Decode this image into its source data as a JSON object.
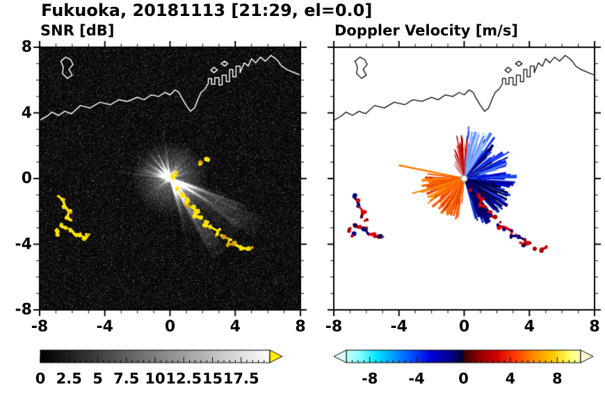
{
  "header": {
    "title": "Fukuoka, 20181113 [21:29, el=0.0]"
  },
  "panels": {
    "snr": {
      "title": "SNR [dB]"
    },
    "doppler": {
      "title": "Doppler Velocity [m/s]"
    }
  },
  "chart_data": {
    "type": "heatmap",
    "description": "Dual-panel Doppler radar PPI display (left: signal-to-noise ratio, right: Doppler velocity)",
    "station": "Fukuoka",
    "date": "20181113",
    "time": "21:29",
    "elevation_deg": 0.0,
    "axes": {
      "xlim": [
        -8,
        8
      ],
      "ylim": [
        -8,
        8
      ],
      "xticks": [
        -8,
        -4,
        0,
        4,
        8
      ],
      "yticks": [
        8,
        4,
        0,
        -4,
        -8
      ],
      "minor_tick_step": 1
    },
    "radar_center": [
      0,
      0
    ],
    "coastline": {
      "color_snr": "#ffffff",
      "color_doppler": "#000000",
      "polylines": [
        [
          [
            -8,
            3.55
          ],
          [
            -7.55,
            3.8
          ],
          [
            -7.25,
            4.05
          ],
          [
            -6.85,
            3.85
          ],
          [
            -6.45,
            4.1
          ],
          [
            -6.05,
            3.95
          ],
          [
            -5.5,
            4.45
          ],
          [
            -4.9,
            4.3
          ],
          [
            -4.3,
            4.65
          ],
          [
            -3.65,
            4.5
          ],
          [
            -3.15,
            4.8
          ],
          [
            -2.6,
            4.7
          ],
          [
            -2.0,
            4.95
          ],
          [
            -1.6,
            4.8
          ],
          [
            -1.15,
            5.1
          ],
          [
            -0.7,
            5.0
          ],
          [
            -0.3,
            5.25
          ],
          [
            0.0,
            5.1
          ],
          [
            0.3,
            5.4
          ],
          [
            0.55,
            5.25
          ],
          [
            0.7,
            4.95
          ],
          [
            1.0,
            4.45
          ],
          [
            1.25,
            4.1
          ],
          [
            1.5,
            4.3
          ],
          [
            1.7,
            4.8
          ],
          [
            1.9,
            5.25
          ],
          [
            2.15,
            5.45
          ],
          [
            2.35,
            5.8
          ],
          [
            2.35,
            6.1
          ],
          [
            2.55,
            6.1
          ],
          [
            2.55,
            5.75
          ],
          [
            2.75,
            5.75
          ],
          [
            2.75,
            6.15
          ],
          [
            3.0,
            6.15
          ],
          [
            3.0,
            5.7
          ],
          [
            3.2,
            5.7
          ],
          [
            3.2,
            6.3
          ],
          [
            3.45,
            6.3
          ],
          [
            3.45,
            5.9
          ],
          [
            3.65,
            5.9
          ],
          [
            3.65,
            6.65
          ],
          [
            3.85,
            6.65
          ],
          [
            3.85,
            6.2
          ],
          [
            4.05,
            6.2
          ],
          [
            4.05,
            6.85
          ],
          [
            4.3,
            6.85
          ],
          [
            4.3,
            6.45
          ],
          [
            4.55,
            7.05
          ],
          [
            4.8,
            6.85
          ],
          [
            5.0,
            7.3
          ],
          [
            5.25,
            7.05
          ],
          [
            5.55,
            7.4
          ],
          [
            5.85,
            7.15
          ],
          [
            6.2,
            7.5
          ],
          [
            6.55,
            7.25
          ],
          [
            6.85,
            6.85
          ],
          [
            7.15,
            6.65
          ],
          [
            7.5,
            6.5
          ],
          [
            8.0,
            6.3
          ]
        ],
        [
          [
            -6.7,
            7.15
          ],
          [
            -6.4,
            7.4
          ],
          [
            -6.1,
            7.25
          ],
          [
            -5.95,
            6.95
          ],
          [
            -6.2,
            6.65
          ],
          [
            -6.0,
            6.3
          ],
          [
            -6.3,
            6.1
          ],
          [
            -6.6,
            6.4
          ],
          [
            -6.55,
            6.8
          ],
          [
            -6.7,
            7.15
          ]
        ],
        [
          [
            2.5,
            6.6
          ],
          [
            2.7,
            6.78
          ],
          [
            2.9,
            6.62
          ],
          [
            2.7,
            6.45
          ],
          [
            2.5,
            6.6
          ]
        ],
        [
          [
            3.15,
            7.0
          ],
          [
            3.35,
            7.15
          ],
          [
            3.55,
            7.0
          ],
          [
            3.35,
            6.85
          ],
          [
            3.15,
            7.0
          ]
        ]
      ]
    },
    "echo_chains": [
      [
        [
          -6.8,
          -1.1
        ],
        [
          -6.55,
          -1.35
        ],
        [
          -6.45,
          -1.7
        ],
        [
          -6.2,
          -2.0
        ],
        [
          -6.3,
          -2.35
        ],
        [
          -6.05,
          -2.55
        ]
      ],
      [
        [
          -6.7,
          -2.9
        ],
        [
          -6.4,
          -3.0
        ],
        [
          -6.1,
          -3.1
        ],
        [
          -5.85,
          -3.4
        ],
        [
          -5.55,
          -3.4
        ],
        [
          -5.25,
          -3.6
        ],
        [
          -5.05,
          -3.5
        ]
      ],
      [
        [
          -7.0,
          -3.15
        ],
        [
          -6.85,
          -3.45
        ]
      ],
      [
        [
          0.45,
          -0.65
        ],
        [
          0.8,
          -1.0
        ],
        [
          1.05,
          -1.3
        ],
        [
          0.95,
          -1.6
        ],
        [
          1.35,
          -1.75
        ],
        [
          1.65,
          -2.0
        ],
        [
          1.55,
          -2.3
        ],
        [
          1.95,
          -2.35
        ],
        [
          2.25,
          -2.6
        ],
        [
          2.15,
          -2.9
        ],
        [
          2.55,
          -3.0
        ],
        [
          2.95,
          -3.2
        ],
        [
          2.85,
          -3.5
        ],
        [
          3.25,
          -3.5
        ],
        [
          3.65,
          -3.7
        ],
        [
          3.55,
          -4.0
        ],
        [
          3.95,
          -4.0
        ],
        [
          4.35,
          -4.2
        ],
        [
          4.75,
          -4.3
        ],
        [
          5.05,
          -4.2
        ]
      ],
      [
        [
          1.8,
          0.9
        ],
        [
          2.25,
          1.1
        ]
      ],
      [
        [
          0.1,
          0.15
        ],
        [
          0.35,
          0.3
        ]
      ]
    ],
    "snr": {
      "title": "SNR [dB]",
      "background": "#000000",
      "chain_color": "#ffe400",
      "chain_alt_color": "#d4a000",
      "colorbar": {
        "range": [
          0,
          20
        ],
        "tick_labels": [
          0,
          2.5,
          5,
          7.5,
          10,
          12.5,
          15,
          17.5
        ],
        "minor_step": 0.5,
        "major_step": 2.5,
        "stops": [
          [
            0,
            "#000000"
          ],
          [
            1,
            "#ffffff"
          ]
        ],
        "over_arrow": "#ffee00"
      },
      "ray_fans": [
        {
          "from": -75,
          "to": -15,
          "n": 85,
          "min_range": 1.2,
          "max_range": 6.3,
          "alpha": [
            0.08,
            0.32
          ]
        },
        {
          "from": 95,
          "to": 175,
          "n": 60,
          "min_range": 1.0,
          "max_range": 4.6,
          "alpha": [
            0.06,
            0.26
          ]
        },
        {
          "from": 15,
          "to": 85,
          "n": 28,
          "min_range": 0.8,
          "max_range": 3.2,
          "alpha": [
            0.05,
            0.18
          ]
        },
        {
          "from": 185,
          "to": 250,
          "n": 18,
          "min_range": 0.8,
          "max_range": 3.0,
          "alpha": [
            0.04,
            0.12
          ]
        },
        {
          "from": 0,
          "to": 360,
          "n": 110,
          "min_range": 0.5,
          "max_range": 2.8,
          "alpha": [
            0.03,
            0.1
          ]
        }
      ],
      "se_glow": {
        "center_deg": -45,
        "spread_deg": 55,
        "n": 24,
        "alpha": 0.045,
        "min_range": 2.5,
        "max_range": 6.3
      }
    },
    "doppler": {
      "title": "Doppler Velocity [m/s]",
      "background": "#ffffff",
      "colorbar": {
        "range": [
          -10,
          10
        ],
        "tick_labels": [
          -8,
          -4,
          0,
          4,
          8
        ],
        "minor_step": 0.5,
        "major_step": 4,
        "stops": [
          [
            0,
            "#c8ffff"
          ],
          [
            0.06,
            "#82ffff"
          ],
          [
            0.13,
            "#00e4ff"
          ],
          [
            0.2,
            "#00a0ff"
          ],
          [
            0.28,
            "#0050ff"
          ],
          [
            0.36,
            "#0000dc"
          ],
          [
            0.44,
            "#000096"
          ],
          [
            0.495,
            "#000038"
          ],
          [
            0.505,
            "#3c0000"
          ],
          [
            0.56,
            "#8c0000"
          ],
          [
            0.64,
            "#d40000"
          ],
          [
            0.72,
            "#ff3c00"
          ],
          [
            0.8,
            "#ff8c00"
          ],
          [
            0.88,
            "#ffc800"
          ],
          [
            0.95,
            "#ffff64"
          ],
          [
            1,
            "#ffffc8"
          ]
        ],
        "under_arrow": "#d8ffff",
        "over_arrow": "#ffffd8"
      },
      "velocity_fans": [
        {
          "from": -75,
          "to": 88,
          "n": 320,
          "min_range": 0.35,
          "max_range": 3.25,
          "exp": 1.6,
          "wedge_deg": [
            1.5,
            4.5
          ],
          "colors": [
            "#0000d2",
            "#0018ff",
            "#0030ff",
            "#000096",
            "#00006e",
            "#2850ff",
            "#4878ff",
            "#0a28e6",
            "#000050",
            "#1e46f0"
          ]
        },
        {
          "from": 55,
          "to": 86,
          "n": 45,
          "min_range": 0.7,
          "max_range": 3.2,
          "exp": 1.2,
          "wedge_deg": [
            1,
            2.6
          ],
          "colors": [
            "#78a0ff",
            "#96c0ff",
            "#5a82ff",
            "#b4d4ff",
            "#3c64ff"
          ]
        },
        {
          "from": -72,
          "to": -10,
          "n": 100,
          "min_range": 0.3,
          "max_range": 2.9,
          "exp": 1.5,
          "wedge_deg": [
            1.5,
            4
          ],
          "colors": [
            "#000050",
            "#000072",
            "#001090",
            "#000038"
          ]
        },
        {
          "from": 178,
          "to": 268,
          "n": 160,
          "min_range": 0.25,
          "max_range": 2.9,
          "exp": 1.6,
          "wedge_deg": [
            1.5,
            4
          ],
          "colors": [
            "#ff5000",
            "#ff6e00",
            "#ff8c00",
            "#e63700",
            "#d22800",
            "#ff7a00"
          ]
        },
        {
          "from": 182,
          "to": 215,
          "n": 70,
          "min_range": 0.3,
          "max_range": 2.4,
          "exp": 1.3,
          "wedge_deg": [
            1.5,
            3.5
          ],
          "colors": [
            "#ff6400",
            "#ff8200",
            "#f05000"
          ]
        },
        {
          "from": 84,
          "to": 103,
          "n": 26,
          "min_range": 0.5,
          "max_range": 2.7,
          "exp": 1.1,
          "wedge_deg": [
            0.8,
            2.2
          ],
          "colors": [
            "#d40000",
            "#9c0000",
            "#ff2800"
          ]
        },
        {
          "from": 103,
          "to": 128,
          "n": 14,
          "min_range": 0.7,
          "max_range": 2.1,
          "exp": 1.1,
          "wedge_deg": [
            0.8,
            1.8
          ],
          "colors": [
            "#c80000",
            "#a00000"
          ]
        }
      ],
      "rays": [
        {
          "angle": 168.5,
          "range": 4.05,
          "width": 2.5,
          "color": "#ff7a00"
        },
        {
          "angle": 173,
          "range": 2.25,
          "width": 2,
          "color": "#ff5a00"
        },
        {
          "angle": 196,
          "range": 3.3,
          "width": 2,
          "color": "#ff8200"
        }
      ],
      "chain_indices": [
        0,
        1,
        2,
        3
      ],
      "chain_colors": [
        "#cc0000",
        "#a40000",
        "#000080",
        "#000060",
        "#e00000"
      ],
      "center_marker": {
        "fill": "#ffffff",
        "stroke": "#909090"
      }
    }
  }
}
